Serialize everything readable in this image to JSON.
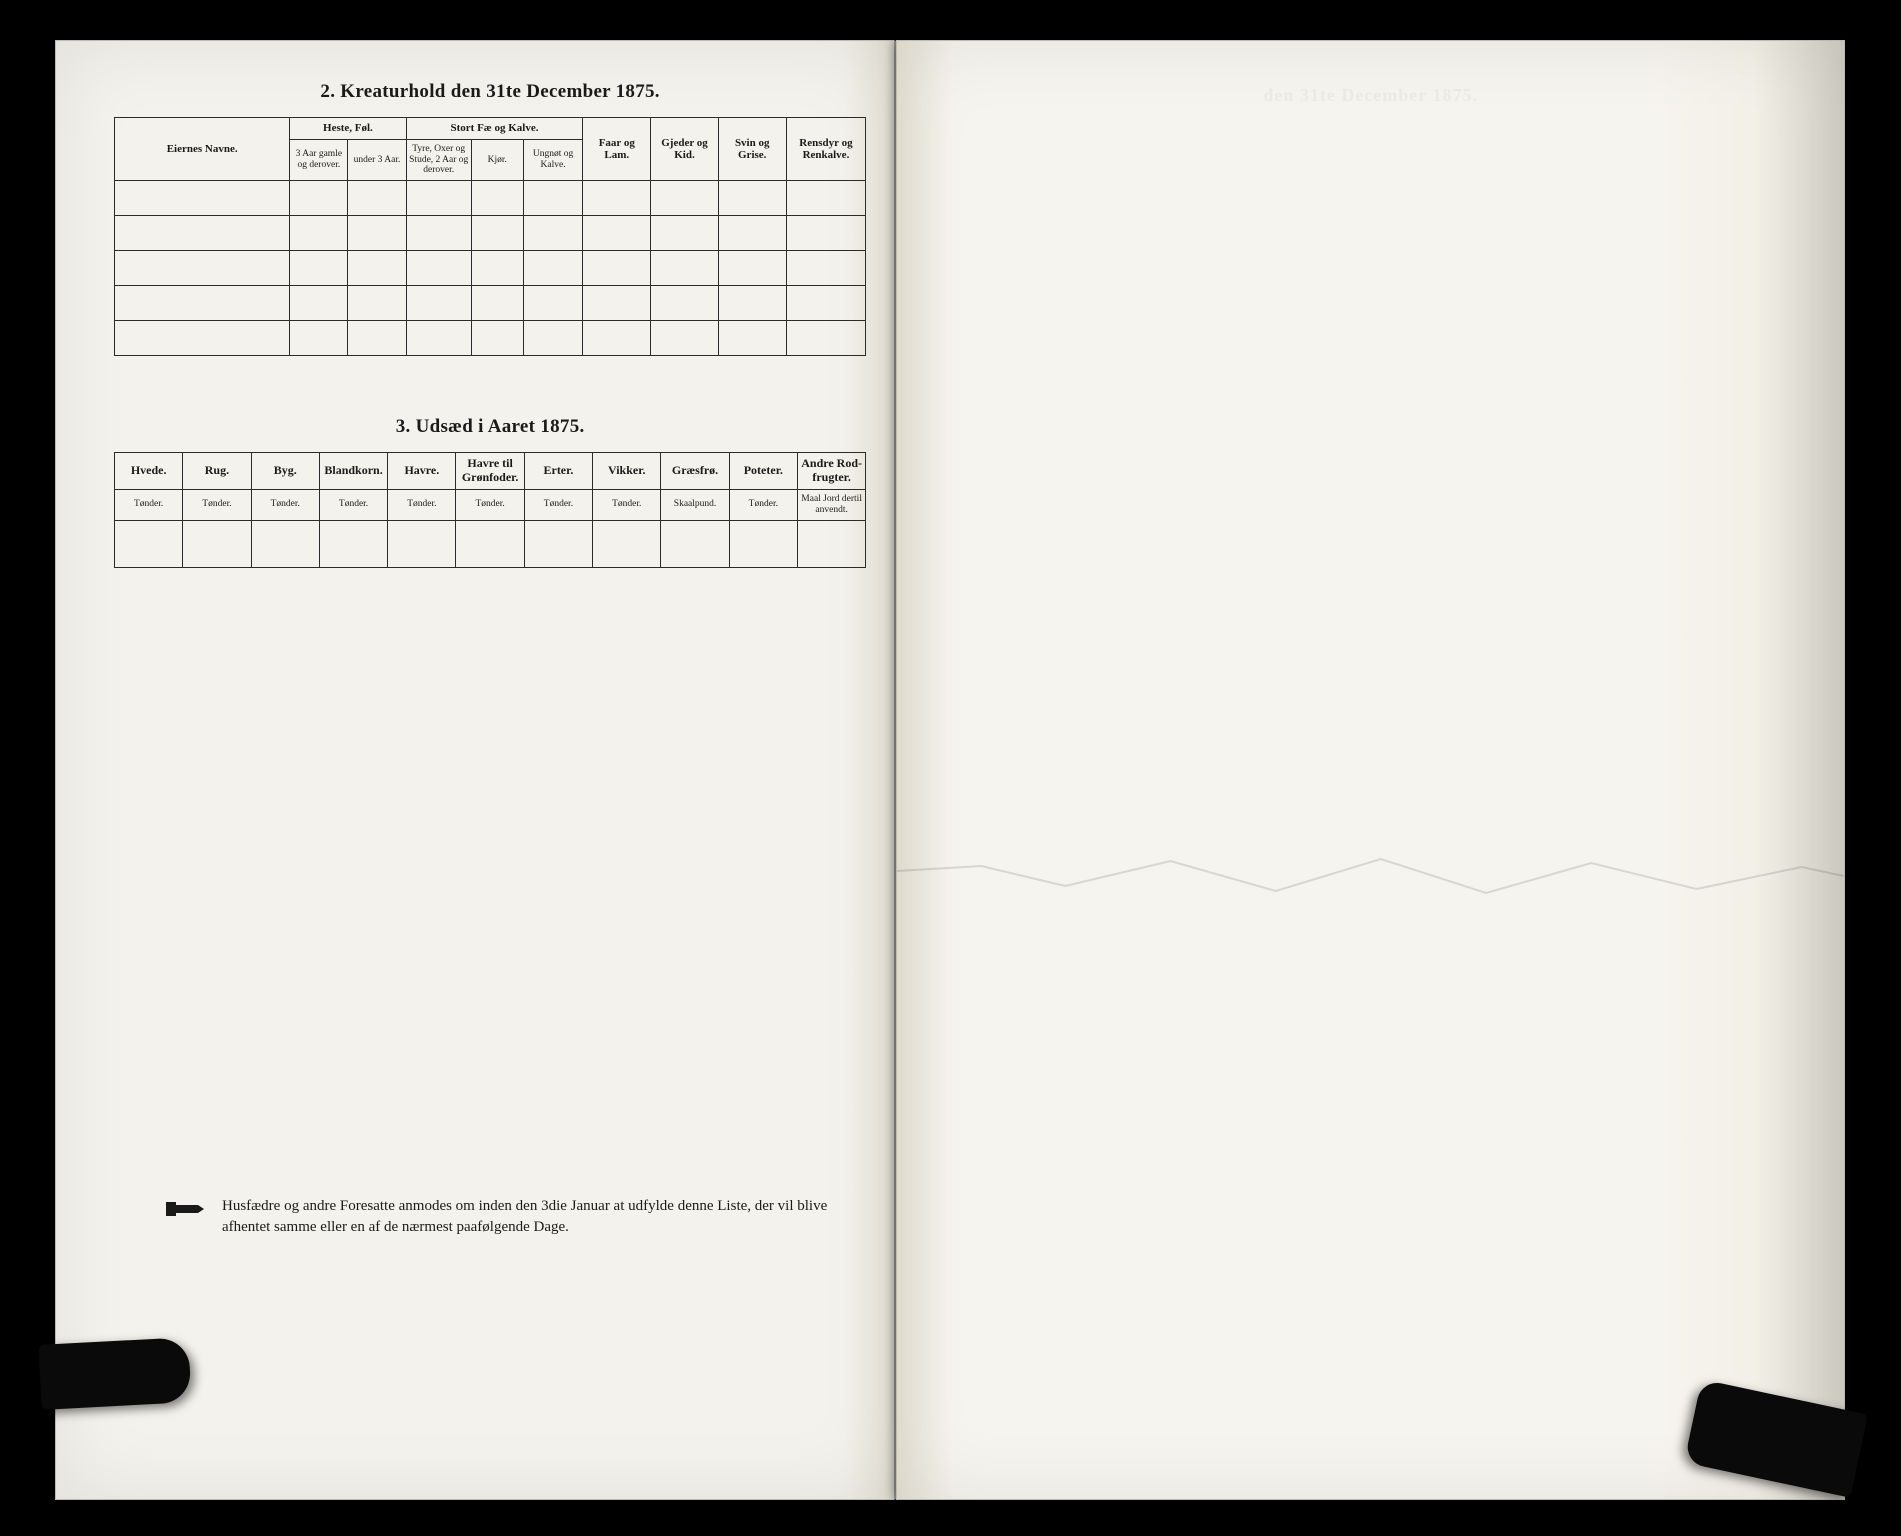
{
  "colors": {
    "page_bg": "#f4f2ec",
    "border": "#2b2b2b",
    "text": "#1a1a1a",
    "outer_bg": "#000000"
  },
  "table1": {
    "title": "2.  Kreaturhold den 31te December 1875.",
    "col_owner": "Eiernes Navne.",
    "group_heste": "Heste, Føl.",
    "heste_a": "3 Aar gamle og derover.",
    "heste_b": "under 3 Aar.",
    "group_storfe": "Stort Fæ og Kalve.",
    "storfe_a": "Tyre, Oxer og Stude, 2 Aar og derover.",
    "storfe_b": "Kjør.",
    "storfe_c": "Ungnøt og Kalve.",
    "col_faar": "Faar og Lam.",
    "col_gjeder": "Gjeder og Kid.",
    "col_svin": "Svin og Grise.",
    "col_rensdyr": "Rensdyr og Renkalve."
  },
  "table2": {
    "title": "3.  Udsæd i Aaret 1875.",
    "cols": [
      {
        "name": "Hvede.",
        "unit": "Tønder."
      },
      {
        "name": "Rug.",
        "unit": "Tønder."
      },
      {
        "name": "Byg.",
        "unit": "Tønder."
      },
      {
        "name": "Blandkorn.",
        "unit": "Tønder."
      },
      {
        "name": "Havre.",
        "unit": "Tønder."
      },
      {
        "name": "Havre til Grønfoder.",
        "unit": "Tønder."
      },
      {
        "name": "Erter.",
        "unit": "Tønder."
      },
      {
        "name": "Vikker.",
        "unit": "Tønder."
      },
      {
        "name": "Græsfrø.",
        "unit": "Skaalpund."
      },
      {
        "name": "Poteter.",
        "unit": "Tønder."
      },
      {
        "name": "Andre Rod-frugter.",
        "unit": "Maal Jord dertil anvendt."
      }
    ]
  },
  "footer": {
    "text": "Husfædre og andre Foresatte anmodes om inden den 3die Januar at udfylde denne Liste, der vil blive afhentet samme eller en af de nærmest paafølgende Dage."
  },
  "right_page_faded": "den 31te December 1875."
}
